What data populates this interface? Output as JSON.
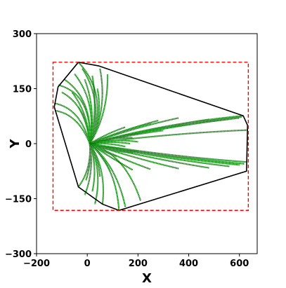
{
  "chart_data": {
    "type": "line",
    "title": "",
    "xlabel": "X",
    "ylabel": "Y",
    "xlim": [
      -200,
      670
    ],
    "ylim": [
      -300,
      300
    ],
    "xticks": [
      -200,
      0,
      200,
      400,
      600
    ],
    "yticks": [
      -300,
      -150,
      0,
      150,
      300
    ],
    "xtick_labels": [
      "−200",
      "0",
      "200",
      "400",
      "600"
    ],
    "ytick_labels": [
      "−300",
      "−150",
      "0",
      "150",
      "300"
    ],
    "grid": false,
    "legend": "none",
    "colors": {
      "trajectory": "#008000",
      "boundary": "#000000",
      "bounding_box": "#ff0000"
    },
    "origin": [
      10,
      0
    ],
    "boundary": {
      "name": "convex-hull",
      "points": [
        [
          -35,
          222
        ],
        [
          45,
          212
        ],
        [
          615,
          76
        ],
        [
          632,
          50
        ],
        [
          628,
          -75
        ],
        [
          125,
          -182
        ],
        [
          60,
          -165
        ],
        [
          -35,
          -118
        ],
        [
          -130,
          100
        ],
        [
          -115,
          155
        ],
        [
          -35,
          222
        ]
      ]
    },
    "bounding_box": {
      "name": "bounding-box",
      "x": [
        -135,
        635
      ],
      "y": [
        -182,
        222
      ]
    },
    "series": [
      {
        "end": [
          -35,
          222
        ],
        "bend": -0.45
      },
      {
        "end": [
          -20,
          205
        ],
        "bend": -0.35
      },
      {
        "end": [
          50,
          205
        ],
        "bend": -0.25
      },
      {
        "end": [
          80,
          190
        ],
        "bend": -0.2
      },
      {
        "end": [
          20,
          185
        ],
        "bend": -0.15
      },
      {
        "end": [
          -10,
          175
        ],
        "bend": -0.2
      },
      {
        "end": [
          -50,
          190
        ],
        "bend": -0.3
      },
      {
        "end": [
          -90,
          175
        ],
        "bend": -0.35
      },
      {
        "end": [
          -115,
          160
        ],
        "bend": -0.45
      },
      {
        "end": [
          -130,
          110
        ],
        "bend": -0.3
      },
      {
        "end": [
          -125,
          90
        ],
        "bend": -0.25
      },
      {
        "end": [
          -100,
          140
        ],
        "bend": -0.3
      },
      {
        "end": [
          40,
          150
        ],
        "bend": -0.25
      },
      {
        "end": [
          -60,
          140
        ],
        "bend": -0.2
      },
      {
        "end": [
          -35,
          100
        ],
        "bend": -0.15
      },
      {
        "end": [
          615,
          76
        ],
        "bend": 0.03
      },
      {
        "end": [
          610,
          73
        ],
        "bend": 0.025
      },
      {
        "end": [
          600,
          70
        ],
        "bend": 0.02
      },
      {
        "end": [
          560,
          67
        ],
        "bend": 0.02
      },
      {
        "end": [
          480,
          66
        ],
        "bend": 0.02
      },
      {
        "end": [
          360,
          70
        ],
        "bend": 0.025
      },
      {
        "end": [
          280,
          63
        ],
        "bend": 0.025
      },
      {
        "end": [
          250,
          56
        ],
        "bend": 0.025
      },
      {
        "end": [
          630,
          37
        ],
        "bend": 0.015
      },
      {
        "end": [
          300,
          36
        ],
        "bend": 0.015
      },
      {
        "end": [
          200,
          28
        ],
        "bend": 0.015
      },
      {
        "end": [
          150,
          45
        ],
        "bend": 0.04
      },
      {
        "end": [
          180,
          16
        ],
        "bend": 0.05
      },
      {
        "end": [
          200,
          5
        ],
        "bend": 0.06
      },
      {
        "end": [
          170,
          0
        ],
        "bend": 0.05
      },
      {
        "end": [
          150,
          -8
        ],
        "bend": 0.05
      },
      {
        "end": [
          200,
          -20
        ],
        "bend": -0.05
      },
      {
        "end": [
          180,
          -25
        ],
        "bend": -0.05
      },
      {
        "end": [
          120,
          -35
        ],
        "bend": -0.05
      },
      {
        "end": [
          628,
          -50
        ],
        "bend": -0.015
      },
      {
        "end": [
          620,
          -55
        ],
        "bend": -0.015
      },
      {
        "end": [
          600,
          -58
        ],
        "bend": -0.015
      },
      {
        "end": [
          560,
          -62
        ],
        "bend": -0.015
      },
      {
        "end": [
          480,
          -66
        ],
        "bend": -0.015
      },
      {
        "end": [
          360,
          -68
        ],
        "bend": -0.015
      },
      {
        "end": [
          250,
          -70
        ],
        "bend": -0.02
      },
      {
        "end": [
          180,
          -72
        ],
        "bend": -0.02
      },
      {
        "end": [
          -35,
          -118
        ],
        "bend": 0.25
      },
      {
        "end": [
          -10,
          -140
        ],
        "bend": 0.2
      },
      {
        "end": [
          30,
          -165
        ],
        "bend": 0.25
      },
      {
        "end": [
          60,
          -165
        ],
        "bend": 0.25
      },
      {
        "end": [
          125,
          -182
        ],
        "bend": 0.25
      },
      {
        "end": [
          150,
          -172
        ],
        "bend": 0.2
      },
      {
        "end": [
          210,
          -155
        ],
        "bend": 0.25
      },
      {
        "end": [
          20,
          -130
        ],
        "bend": 0.2
      },
      {
        "end": [
          -5,
          -100
        ],
        "bend": 0.15
      },
      {
        "end": [
          50,
          -90
        ],
        "bend": 0.15
      },
      {
        "end": [
          90,
          -75
        ],
        "bend": 0.1
      }
    ]
  }
}
